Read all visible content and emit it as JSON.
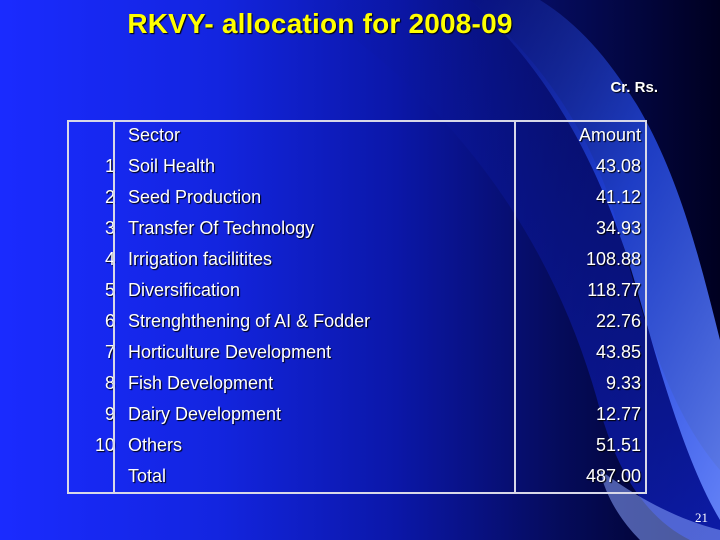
{
  "slide": {
    "title": "RKVY- allocation for 2008-09",
    "unit": "Cr. Rs.",
    "page_number": "21",
    "colors": {
      "title": "#ffff00",
      "text": "#ffffff",
      "background": "#1a2bff"
    }
  },
  "table": {
    "headers": {
      "number": "",
      "sector": "Sector",
      "amount": "Amount"
    },
    "rows": [
      {
        "number": "1",
        "sector": "Soil Health",
        "amount": "43.08"
      },
      {
        "number": "2",
        "sector": "Seed Production",
        "amount": "41.12"
      },
      {
        "number": "3",
        "sector": "Transfer Of Technology",
        "amount": "34.93"
      },
      {
        "number": "4",
        "sector": "Irrigation facilitites",
        "amount": "108.88"
      },
      {
        "number": "5",
        "sector": "Diversification",
        "amount": "118.77"
      },
      {
        "number": "6",
        "sector": "Strenghthening of AI & Fodder",
        "amount": "22.76"
      },
      {
        "number": "7",
        "sector": "Horticulture Development",
        "amount": "43.85"
      },
      {
        "number": "8",
        "sector": "Fish Development",
        "amount": "9.33"
      },
      {
        "number": "9",
        "sector": "Dairy Development",
        "amount": "12.77"
      },
      {
        "number": "10",
        "sector": "Others",
        "amount": "51.51"
      }
    ],
    "total": {
      "number": "",
      "label": "Total",
      "amount": "487.00"
    }
  }
}
